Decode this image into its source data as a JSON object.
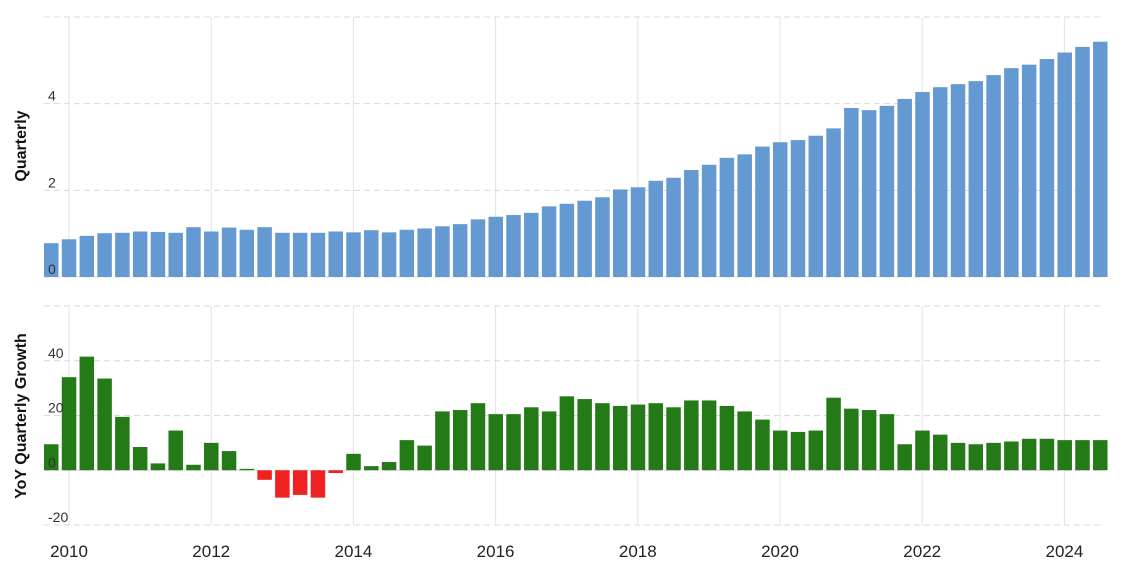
{
  "colors": {
    "quarterly_bar": "#6499d1",
    "growth_positive": "#237a16",
    "growth_negative": "#ee2222",
    "gridline": "#d9d9d9"
  },
  "chart_data": [
    {
      "type": "bar",
      "ylabel": "Quarterly",
      "ylim": [
        0,
        6
      ],
      "yticks": [
        0,
        2,
        4
      ],
      "grid": true,
      "x_start": "2010 Q1",
      "values": [
        0.78,
        0.87,
        0.95,
        1.01,
        1.02,
        1.05,
        1.04,
        1.02,
        1.15,
        1.05,
        1.14,
        1.09,
        1.15,
        1.02,
        1.02,
        1.02,
        1.05,
        1.03,
        1.08,
        1.03,
        1.09,
        1.12,
        1.17,
        1.22,
        1.33,
        1.39,
        1.43,
        1.48,
        1.63,
        1.69,
        1.76,
        1.84,
        2.02,
        2.07,
        2.22,
        2.29,
        2.47,
        2.59,
        2.75,
        2.83,
        3.01,
        3.11,
        3.16,
        3.26,
        3.43,
        3.9,
        3.85,
        3.95,
        4.11,
        4.27,
        4.38,
        4.45,
        4.52,
        4.66,
        4.82,
        4.9,
        5.03,
        5.18,
        5.31,
        5.43
      ]
    },
    {
      "type": "bar",
      "ylabel": "YoY Quarterly Growth",
      "ylim": [
        -20,
        60
      ],
      "yticks": [
        -20,
        0,
        20,
        40
      ],
      "grid": true,
      "x_start": "2010 Q1",
      "values": [
        9.5,
        34,
        41.5,
        33.5,
        19.5,
        8.5,
        2.5,
        14.5,
        2,
        10,
        7,
        0.5,
        -3.5,
        -10,
        -9,
        -10,
        -1,
        6,
        1.5,
        3,
        11,
        9,
        21.5,
        22,
        24.5,
        20.5,
        20.5,
        23,
        21.5,
        27,
        26,
        24.5,
        23.5,
        24,
        24.5,
        23,
        25.5,
        25.5,
        23.5,
        21.5,
        18.5,
        14.5,
        14,
        14.5,
        26.5,
        22.5,
        22,
        20.5,
        9.5,
        14.5,
        13,
        10,
        9.5,
        10,
        10.5,
        11.5,
        11.5,
        11,
        11,
        11
      ]
    }
  ],
  "x_axis": {
    "tick_labels": [
      "2010",
      "2012",
      "2014",
      "2016",
      "2018",
      "2020",
      "2022",
      "2024"
    ],
    "tick_years": [
      2010,
      2012,
      2014,
      2016,
      2018,
      2020,
      2022,
      2024
    ]
  }
}
